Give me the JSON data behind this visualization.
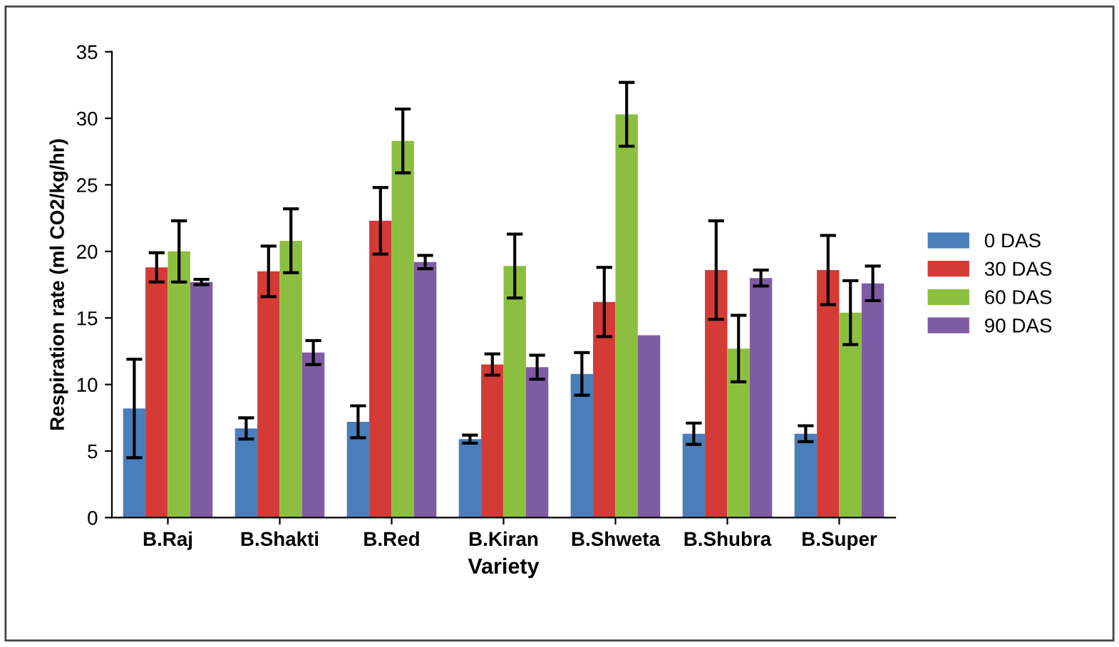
{
  "chart_data": {
    "type": "bar",
    "xlabel": "Variety",
    "ylabel": "Respiration rate (ml CO2/kg/hr)",
    "categories": [
      "B.Raj",
      "B.Shakti",
      "B.Red",
      "B.Kiran",
      "B.Shweta",
      "B.Shubra",
      "B.Super"
    ],
    "series": [
      {
        "name": "0 DAS",
        "color": "#4a7ebb",
        "values": [
          8.2,
          6.7,
          7.2,
          5.9,
          10.8,
          6.3,
          6.3
        ],
        "errors": [
          3.7,
          0.8,
          1.2,
          0.3,
          1.6,
          0.8,
          0.6
        ]
      },
      {
        "name": "30 DAS",
        "color": "#d43a36",
        "values": [
          18.8,
          18.5,
          22.3,
          11.5,
          16.2,
          18.6,
          18.6
        ],
        "errors": [
          1.1,
          1.9,
          2.5,
          0.8,
          2.6,
          3.7,
          2.6
        ]
      },
      {
        "name": "60 DAS",
        "color": "#8cbf3f",
        "values": [
          20.0,
          20.8,
          28.3,
          18.9,
          30.3,
          12.7,
          15.4
        ],
        "errors": [
          2.3,
          2.4,
          2.4,
          2.4,
          2.4,
          2.5,
          2.4
        ]
      },
      {
        "name": "90 DAS",
        "color": "#7f5ba6",
        "values": [
          17.7,
          12.4,
          19.2,
          11.3,
          13.7,
          18.0,
          17.6
        ],
        "errors": [
          0.2,
          0.9,
          0.5,
          0.9,
          null,
          0.6,
          1.3
        ]
      }
    ],
    "ylim": [
      0,
      35
    ],
    "yticks": [
      0,
      5,
      10,
      15,
      20,
      25,
      30,
      35
    ],
    "grid": false,
    "legend": "right"
  }
}
